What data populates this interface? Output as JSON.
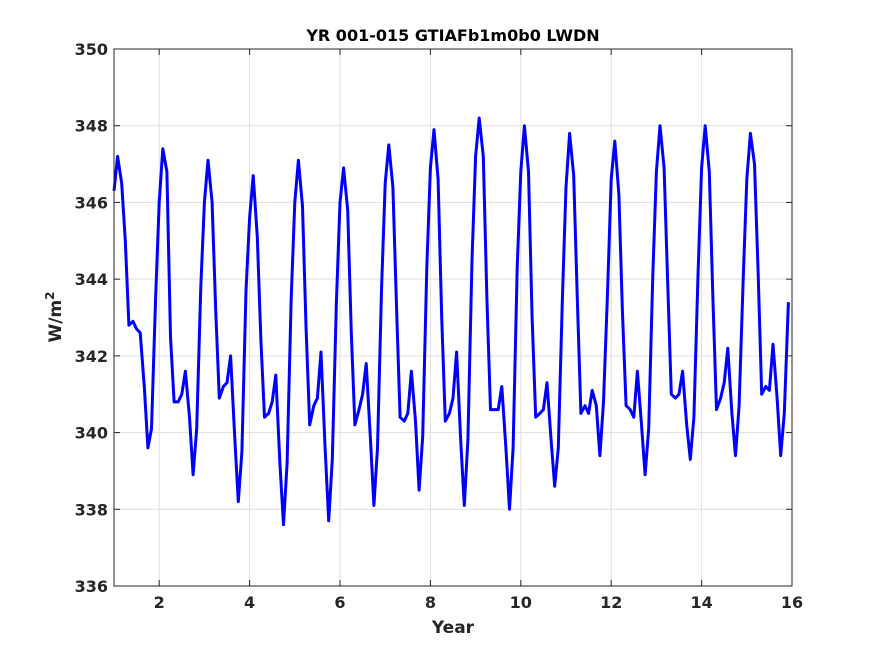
{
  "chart_data": {
    "type": "line",
    "title": "YR 001-015 GTIAFb1m0b0 LWDN",
    "xlabel": "Year",
    "ylabel_base": "W/m",
    "ylabel_sup": "2",
    "xlim": [
      1,
      16
    ],
    "ylim": [
      336,
      350
    ],
    "xticks": [
      2,
      4,
      6,
      8,
      10,
      12,
      14,
      16
    ],
    "yticks": [
      336,
      338,
      340,
      342,
      344,
      346,
      348,
      350
    ],
    "grid": true,
    "line_color": "#0000ff",
    "series": [
      {
        "x": [
          1.0,
          1.08,
          1.17,
          1.25,
          1.33,
          1.42,
          1.5,
          1.58,
          1.67,
          1.75,
          1.83,
          1.92,
          2.0,
          2.08,
          2.17,
          2.25,
          2.33,
          2.42,
          2.5,
          2.58,
          2.67,
          2.75,
          2.83,
          2.92,
          3.0,
          3.08,
          3.17,
          3.25,
          3.33,
          3.42,
          3.5,
          3.58,
          3.67,
          3.75,
          3.83,
          3.92,
          4.0,
          4.08,
          4.17,
          4.25,
          4.33,
          4.42,
          4.5,
          4.58,
          4.67,
          4.75,
          4.83,
          4.92,
          5.0,
          5.08,
          5.17,
          5.25,
          5.33,
          5.42,
          5.5,
          5.58,
          5.67,
          5.75,
          5.83,
          5.92,
          6.0,
          6.08,
          6.17,
          6.25,
          6.33,
          6.42,
          6.5,
          6.58,
          6.67,
          6.75,
          6.83,
          6.92,
          7.0,
          7.08,
          7.17,
          7.25,
          7.33,
          7.42,
          7.5,
          7.58,
          7.67,
          7.75,
          7.83,
          7.92,
          8.0,
          8.08,
          8.17,
          8.25,
          8.33,
          8.42,
          8.5,
          8.58,
          8.67,
          8.75,
          8.83,
          8.92,
          9.0,
          9.08,
          9.17,
          9.25,
          9.33,
          9.42,
          9.5,
          9.58,
          9.67,
          9.75,
          9.83,
          9.92,
          10.0,
          10.08,
          10.17,
          10.25,
          10.33,
          10.42,
          10.5,
          10.58,
          10.67,
          10.75,
          10.83,
          10.92,
          11.0,
          11.08,
          11.17,
          11.25,
          11.33,
          11.42,
          11.5,
          11.58,
          11.67,
          11.75,
          11.83,
          11.92,
          12.0,
          12.08,
          12.17,
          12.25,
          12.33,
          12.42,
          12.5,
          12.58,
          12.67,
          12.75,
          12.83,
          12.92,
          13.0,
          13.08,
          13.17,
          13.25,
          13.33,
          13.42,
          13.5,
          13.58,
          13.67,
          13.75,
          13.83,
          13.92,
          14.0,
          14.08,
          14.17,
          14.25,
          14.33,
          14.42,
          14.5,
          14.58,
          14.67,
          14.75,
          14.83,
          14.92,
          15.0,
          15.08,
          15.17,
          15.25,
          15.33,
          15.42,
          15.5,
          15.58,
          15.67,
          15.75,
          15.83,
          15.92
        ],
        "values": [
          346.3,
          347.2,
          346.5,
          345.0,
          342.8,
          342.9,
          342.7,
          342.6,
          341.2,
          339.6,
          340.1,
          343.5,
          346.0,
          347.4,
          346.8,
          342.5,
          340.8,
          340.8,
          341.0,
          341.6,
          340.4,
          338.9,
          340.1,
          343.8,
          346.0,
          347.1,
          346.0,
          343.2,
          340.9,
          341.2,
          341.3,
          342.0,
          339.9,
          338.2,
          339.5,
          343.7,
          345.6,
          346.7,
          345.1,
          342.4,
          340.4,
          340.5,
          340.8,
          341.5,
          339.2,
          337.6,
          339.2,
          343.5,
          346.0,
          347.1,
          345.9,
          342.7,
          340.2,
          340.7,
          340.9,
          342.1,
          339.6,
          337.7,
          339.3,
          343.4,
          346.0,
          346.9,
          345.8,
          342.6,
          340.2,
          340.6,
          341.0,
          341.8,
          339.9,
          338.1,
          339.6,
          343.8,
          346.5,
          347.5,
          346.4,
          343.3,
          340.4,
          340.3,
          340.5,
          341.6,
          340.3,
          338.5,
          339.9,
          344.3,
          346.9,
          347.9,
          346.6,
          343.0,
          340.3,
          340.5,
          340.9,
          342.1,
          339.8,
          338.1,
          339.8,
          344.5,
          347.2,
          348.2,
          347.2,
          343.5,
          340.6,
          340.6,
          340.6,
          341.2,
          339.6,
          338.0,
          339.6,
          344.3,
          346.8,
          348.0,
          346.8,
          343.0,
          340.4,
          340.5,
          340.6,
          341.3,
          339.8,
          338.6,
          339.6,
          343.5,
          346.4,
          347.8,
          346.7,
          343.5,
          340.5,
          340.7,
          340.5,
          341.1,
          340.7,
          339.4,
          340.8,
          343.7,
          346.6,
          347.6,
          346.2,
          343.1,
          340.7,
          340.6,
          340.4,
          341.6,
          340.2,
          338.9,
          340.1,
          344.1,
          346.8,
          348.0,
          346.9,
          343.9,
          341.0,
          340.9,
          341.0,
          341.6,
          340.2,
          339.3,
          340.4,
          344.1,
          346.9,
          348.0,
          346.8,
          343.5,
          340.6,
          340.9,
          341.3,
          342.2,
          340.5,
          339.4,
          340.7,
          344.0,
          346.6,
          347.8,
          347.0,
          344.2,
          341.0,
          341.2,
          341.1,
          342.3,
          340.9,
          339.4,
          340.5,
          343.4
        ]
      }
    ]
  }
}
